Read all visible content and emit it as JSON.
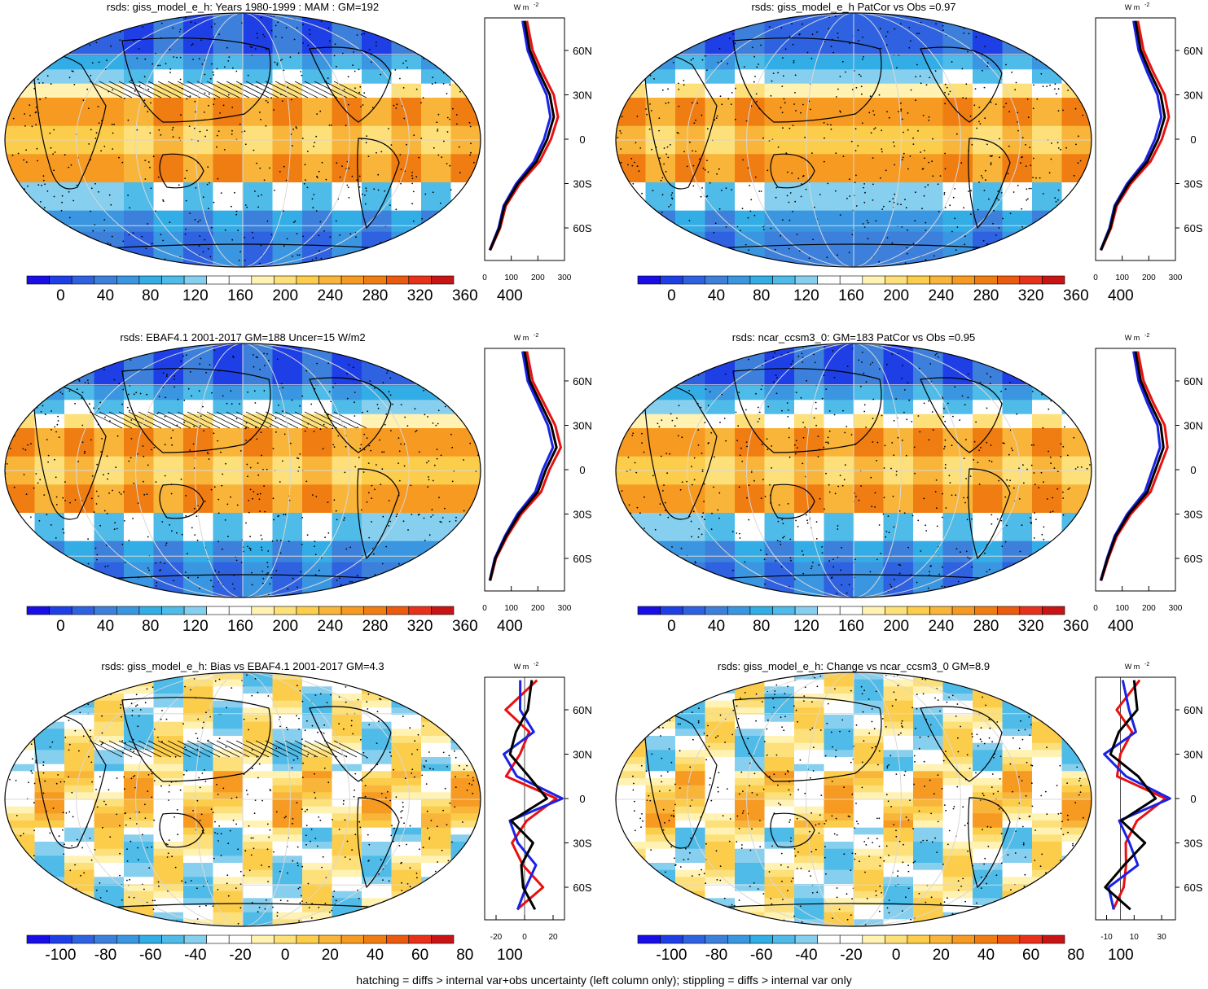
{
  "palette": {
    "abs": [
      "#1a0ee6",
      "#1f3fe6",
      "#2f62e0",
      "#3d80dc",
      "#3a96e0",
      "#33ade6",
      "#4ebbe8",
      "#87cfee",
      "#ffffff",
      "#ffffff",
      "#fff2b3",
      "#fde07a",
      "#fccd4a",
      "#f9b53a",
      "#f69a22",
      "#f07d12",
      "#ec5a10",
      "#e8301a",
      "#c81414"
    ],
    "diff": [
      "#1a0ee6",
      "#1f3fe6",
      "#2f62e0",
      "#3d80dc",
      "#3a96e0",
      "#33ade6",
      "#4ebbe8",
      "#87cfee",
      "#ffffff",
      "#ffffff",
      "#fff2b3",
      "#fde07a",
      "#fccd4a",
      "#f9b53a",
      "#f69a22",
      "#f07d12",
      "#ec5a10",
      "#e8301a",
      "#c81414"
    ],
    "line_colors": {
      "black": "#000000",
      "blue": "#1a22e6",
      "red": "#e81010"
    }
  },
  "panels": [
    {
      "id": "p1",
      "title": "rsds: giss_model_e_h: Years 1980-1999 : MAM : GM=192",
      "kind": "abs",
      "colorbar_labels": [
        "0",
        "40",
        "80",
        "120",
        "160",
        "200",
        "240",
        "280",
        "320",
        "360",
        "400"
      ],
      "profile_ticks": [
        "0",
        "100",
        "200",
        "300"
      ],
      "xlim": [
        0,
        300
      ],
      "hatch": true,
      "stipple": true
    },
    {
      "id": "p2",
      "title": "rsds: giss_model_e_h PatCor vs Obs =0.97",
      "kind": "abs",
      "colorbar_labels": [
        "0",
        "40",
        "80",
        "120",
        "160",
        "200",
        "240",
        "280",
        "320",
        "360",
        "400"
      ],
      "profile_ticks": [
        "0",
        "100",
        "200",
        "300"
      ],
      "xlim": [
        0,
        300
      ],
      "hatch": false,
      "stipple": true
    },
    {
      "id": "p3",
      "title": "rsds: EBAF4.1 2001-2017 GM=188 Uncer=15 W/m2",
      "kind": "abs",
      "colorbar_labels": [
        "0",
        "40",
        "80",
        "120",
        "160",
        "200",
        "240",
        "280",
        "320",
        "360",
        "400"
      ],
      "profile_ticks": [
        "0",
        "100",
        "200",
        "300"
      ],
      "xlim": [
        0,
        300
      ],
      "hatch": true,
      "stipple": true
    },
    {
      "id": "p4",
      "title": "rsds: ncar_ccsm3_0: GM=183 PatCor vs Obs =0.95",
      "kind": "abs",
      "colorbar_labels": [
        "0",
        "40",
        "80",
        "120",
        "160",
        "200",
        "240",
        "280",
        "320",
        "360",
        "400"
      ],
      "profile_ticks": [
        "0",
        "100",
        "200",
        "300"
      ],
      "xlim": [
        0,
        300
      ],
      "hatch": false,
      "stipple": true
    },
    {
      "id": "p5",
      "title": "rsds: giss_model_e_h: Bias vs EBAF4.1 2001-2017 GM=4.3",
      "kind": "diff",
      "colorbar_labels": [
        "-100",
        "-80",
        "-60",
        "-40",
        "-20",
        "0",
        "20",
        "40",
        "60",
        "80",
        "100"
      ],
      "profile_ticks": [
        "-20",
        "0",
        "20"
      ],
      "xlim": [
        -28,
        28
      ],
      "hatch": true,
      "stipple": true
    },
    {
      "id": "p6",
      "title": "rsds: giss_model_e_h: Change vs ncar_ccsm3_0 GM=8.9",
      "kind": "diff",
      "colorbar_labels": [
        "-100",
        "-80",
        "-60",
        "-40",
        "-20",
        "0",
        "20",
        "40",
        "60",
        "80",
        "100"
      ],
      "profile_ticks": [
        "-10",
        "10",
        "30"
      ],
      "xlim": [
        -18,
        40
      ],
      "hatch": false,
      "stipple": true
    }
  ],
  "profile_units": "W m",
  "profile_units_exp": "-2",
  "lat_labels": [
    "60N",
    "30N",
    "0",
    "30S",
    "60S"
  ],
  "footer": "hatching = diffs > internal var+obs uncertainty (left column only); stippling = diffs > internal var only",
  "chart_data": [
    {
      "type": "line",
      "title": "rsds: giss_model_e_h: Years 1980-1999 : MAM : GM=192",
      "xlim": [
        0,
        300
      ],
      "ylabel": "",
      "y": [
        80,
        60,
        45,
        30,
        15,
        0,
        -15,
        -30,
        -45,
        -60,
        -75
      ],
      "series": [
        {
          "values": [
            150,
            170,
            205,
            245,
            260,
            235,
            195,
            125,
            75,
            55,
            20
          ]
        }
      ]
    },
    {
      "type": "line",
      "title": "rsds: giss_model_e_h PatCor vs Obs =0.97",
      "xlim": [
        0,
        300
      ],
      "y": [
        80,
        60,
        45,
        30,
        15,
        0,
        -15,
        -30,
        -45,
        -60,
        -75
      ],
      "series": [
        {
          "values": [
            150,
            170,
            205,
            245,
            260,
            235,
            195,
            125,
            75,
            55,
            20
          ]
        }
      ]
    },
    {
      "type": "line",
      "title": "rsds: EBAF4.1 2001-2017 GM=188 Uncer=15 W/m2",
      "xlim": [
        0,
        300
      ],
      "y": [
        80,
        60,
        45,
        30,
        15,
        0,
        -15,
        -30,
        -45,
        -60,
        -75
      ],
      "series": [
        {
          "values": [
            150,
            170,
            210,
            250,
            270,
            230,
            200,
            130,
            80,
            40,
            20
          ]
        }
      ]
    },
    {
      "type": "line",
      "title": "rsds: ncar_ccsm3_0: GM=183 PatCor vs Obs =0.95",
      "xlim": [
        0,
        300
      ],
      "y": [
        80,
        60,
        45,
        30,
        15,
        0,
        -15,
        -30,
        -45,
        -60,
        -75
      ],
      "series": [
        {
          "values": [
            150,
            170,
            205,
            245,
            255,
            225,
            195,
            125,
            75,
            45,
            20
          ]
        }
      ]
    },
    {
      "type": "line",
      "title": "rsds: giss_model_e_h: Bias vs EBAF4.1 2001-2017 GM=4.3",
      "xlim": [
        -28,
        28
      ],
      "y": [
        80,
        60,
        45,
        30,
        15,
        0,
        -15,
        -30,
        -45,
        -60,
        -75
      ],
      "series": [
        {
          "values": [
            5,
            -5,
            0,
            -8,
            -5,
            20,
            -5,
            -2,
            0,
            5,
            0
          ]
        }
      ]
    },
    {
      "type": "line",
      "title": "rsds: giss_model_e_h: Change vs ncar_ccsm3_0 GM=8.9",
      "xlim": [
        -18,
        40
      ],
      "y": [
        80,
        60,
        45,
        30,
        15,
        0,
        -15,
        -30,
        -45,
        -60,
        -75
      ],
      "series": [
        {
          "values": [
            10,
            5,
            5,
            -5,
            5,
            30,
            5,
            10,
            5,
            -5,
            0
          ]
        }
      ]
    }
  ]
}
